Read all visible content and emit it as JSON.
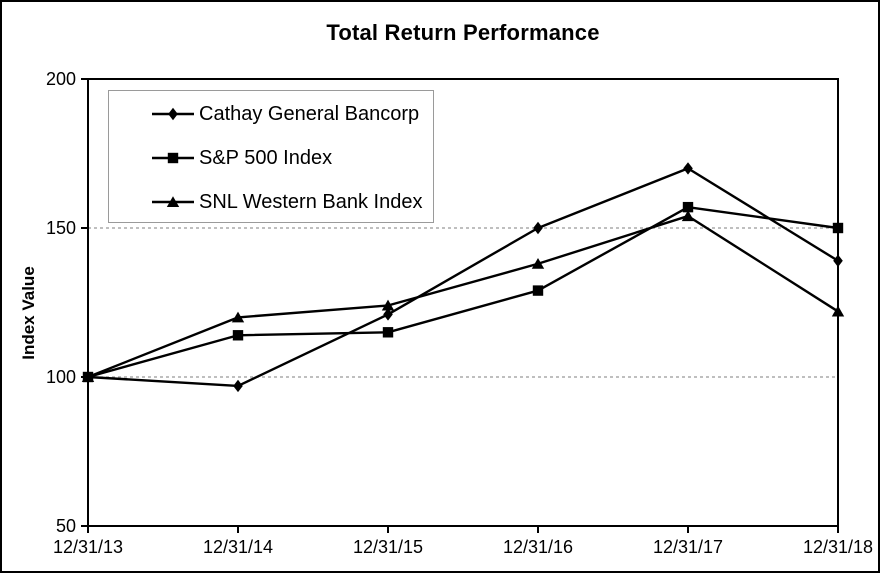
{
  "chart_data": {
    "type": "line",
    "title": "Total Return Performance",
    "xlabel": "",
    "ylabel": "Index Value",
    "x_labels": [
      "12/31/13",
      "12/31/14",
      "12/31/15",
      "12/31/16",
      "12/31/17",
      "12/31/18"
    ],
    "y_ticks": [
      50,
      100,
      150,
      200
    ],
    "ylim": [
      50,
      200
    ],
    "gridlines_y": [
      100,
      150
    ],
    "grid": "horizontal dashed gridlines at 100 and 150 only",
    "legend_position": "top-left inside plot area",
    "series": [
      {
        "name": "Cathay General Bancorp",
        "marker": "diamond",
        "color": "#000000",
        "values": [
          100,
          97,
          121,
          150,
          170,
          139
        ]
      },
      {
        "name": "S&P 500 Index",
        "marker": "square",
        "color": "#000000",
        "values": [
          100,
          114,
          115,
          129,
          157,
          150
        ]
      },
      {
        "name": "SNL Western Bank Index",
        "marker": "triangle",
        "color": "#000000",
        "values": [
          100,
          120,
          124,
          138,
          154,
          122
        ]
      }
    ]
  },
  "colors": {
    "line": "#000000",
    "marker": "#000000",
    "gridline": "#999999",
    "axis": "#000000",
    "legend_border": "#9a9a9a",
    "background": "#ffffff",
    "outer_border": "#000000"
  }
}
